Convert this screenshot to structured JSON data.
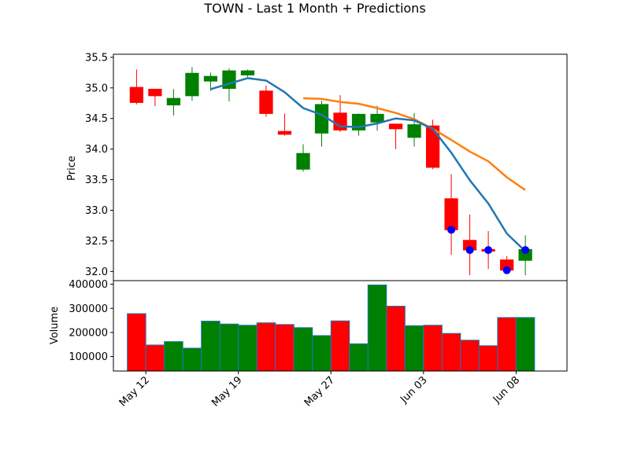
{
  "chart_data": {
    "type": "candlestick",
    "title": "TOWN - Last 1 Month + Predictions",
    "price_panel": {
      "ylabel": "Price",
      "ylim": [
        31.85,
        35.55
      ],
      "yticks": [
        32.0,
        32.5,
        33.0,
        33.5,
        34.0,
        34.5,
        35.0,
        35.5
      ],
      "ytick_labels": [
        "32.0",
        "32.5",
        "33.0",
        "33.5",
        "34.0",
        "34.5",
        "35.0",
        "35.5"
      ]
    },
    "volume_panel": {
      "ylabel": "Volume",
      "ylim": [
        40000,
        415000
      ],
      "yticks": [
        100000,
        200000,
        300000,
        400000
      ],
      "ytick_labels": [
        "100000",
        "200000",
        "300000",
        "400000"
      ]
    },
    "x_axis": {
      "tick_labels": [
        "May 12",
        "May 19",
        "May 27",
        "Jun 03",
        "Jun 08"
      ],
      "tick_positions": [
        0.5,
        5.5,
        10.5,
        15.5,
        20.5
      ]
    },
    "candles": [
      {
        "date": "May 12",
        "open": 35.01,
        "high": 35.3,
        "low": 34.73,
        "close": 34.76,
        "volume": 278000
      },
      {
        "date": "May 13",
        "open": 34.98,
        "high": 34.98,
        "low": 34.7,
        "close": 34.87,
        "volume": 148000
      },
      {
        "date": "May 14",
        "open": 34.72,
        "high": 34.98,
        "low": 34.55,
        "close": 34.83,
        "volume": 162000
      },
      {
        "date": "May 15",
        "open": 34.87,
        "high": 35.34,
        "low": 34.79,
        "close": 35.24,
        "volume": 135000
      },
      {
        "date": "May 16",
        "open": 35.11,
        "high": 35.25,
        "low": 34.95,
        "close": 35.19,
        "volume": 247000
      },
      {
        "date": "May 19",
        "open": 34.99,
        "high": 35.32,
        "low": 34.78,
        "close": 35.28,
        "volume": 235000
      },
      {
        "date": "May 20",
        "open": 35.21,
        "high": 35.3,
        "low": 35.18,
        "close": 35.28,
        "volume": 230000
      },
      {
        "date": "May 21",
        "open": 34.95,
        "high": 35.04,
        "low": 34.53,
        "close": 34.58,
        "volume": 240000
      },
      {
        "date": "May 22",
        "open": 34.29,
        "high": 34.58,
        "low": 34.22,
        "close": 34.24,
        "volume": 233000
      },
      {
        "date": "May 23",
        "open": 33.67,
        "high": 34.08,
        "low": 33.63,
        "close": 33.93,
        "volume": 220000
      },
      {
        "date": "May 27",
        "open": 34.26,
        "high": 34.79,
        "low": 34.04,
        "close": 34.73,
        "volume": 187000
      },
      {
        "date": "May 28",
        "open": 34.59,
        "high": 34.88,
        "low": 34.28,
        "close": 34.31,
        "volume": 248000
      },
      {
        "date": "May 29",
        "open": 34.31,
        "high": 34.58,
        "low": 34.22,
        "close": 34.57,
        "volume": 153000
      },
      {
        "date": "May 30",
        "open": 34.44,
        "high": 34.71,
        "low": 34.3,
        "close": 34.57,
        "volume": 397000
      },
      {
        "date": "Jun 02",
        "open": 34.41,
        "high": 34.41,
        "low": 34.0,
        "close": 34.33,
        "volume": 309000
      },
      {
        "date": "Jun 03",
        "open": 34.19,
        "high": 34.59,
        "low": 34.04,
        "close": 34.4,
        "volume": 228000
      },
      {
        "date": "Jun 04",
        "open": 34.38,
        "high": 34.48,
        "low": 33.67,
        "close": 33.7,
        "volume": 230000
      },
      {
        "date": "Jun 05",
        "open": 33.19,
        "high": 33.59,
        "low": 32.27,
        "close": 32.68,
        "volume": 196000
      },
      {
        "date": "Jun 06",
        "open": 32.51,
        "high": 32.93,
        "low": 31.94,
        "close": 32.35,
        "volume": 168000
      },
      {
        "date": "Jun 07",
        "open": 32.36,
        "high": 32.66,
        "low": 32.04,
        "close": 32.33,
        "volume": 145000
      },
      {
        "date": "Jun 08",
        "open": 32.19,
        "high": 32.25,
        "low": 31.99,
        "close": 32.02,
        "volume": 262000
      },
      {
        "date": "Jun 09",
        "open": 32.18,
        "high": 32.59,
        "low": 31.94,
        "close": 32.36,
        "volume": 262000
      }
    ],
    "ma_short": {
      "color": "#1f77b4",
      "start_index": 4,
      "values": [
        34.98,
        35.07,
        35.16,
        35.12,
        34.93,
        34.67,
        34.56,
        34.37,
        34.36,
        34.42,
        34.5,
        34.47,
        34.33,
        33.94,
        33.49,
        33.11,
        32.62,
        32.33
      ]
    },
    "ma_long": {
      "color": "#ff7f0e",
      "start_index": 9,
      "values": [
        34.83,
        34.82,
        34.77,
        34.74,
        34.67,
        34.59,
        34.49,
        34.33,
        34.15,
        33.96,
        33.8,
        33.54,
        33.33
      ]
    },
    "prediction_markers": {
      "color": "#0000ff",
      "points": [
        {
          "index": 17,
          "value": 32.68
        },
        {
          "index": 18,
          "value": 32.35
        },
        {
          "index": 19,
          "value": 32.35
        },
        {
          "index": 20,
          "value": 32.02
        },
        {
          "index": 21,
          "value": 32.35
        }
      ]
    },
    "colors": {
      "up": "#008000",
      "down": "#ff0000",
      "volume_edge": "#1f77b4"
    }
  }
}
